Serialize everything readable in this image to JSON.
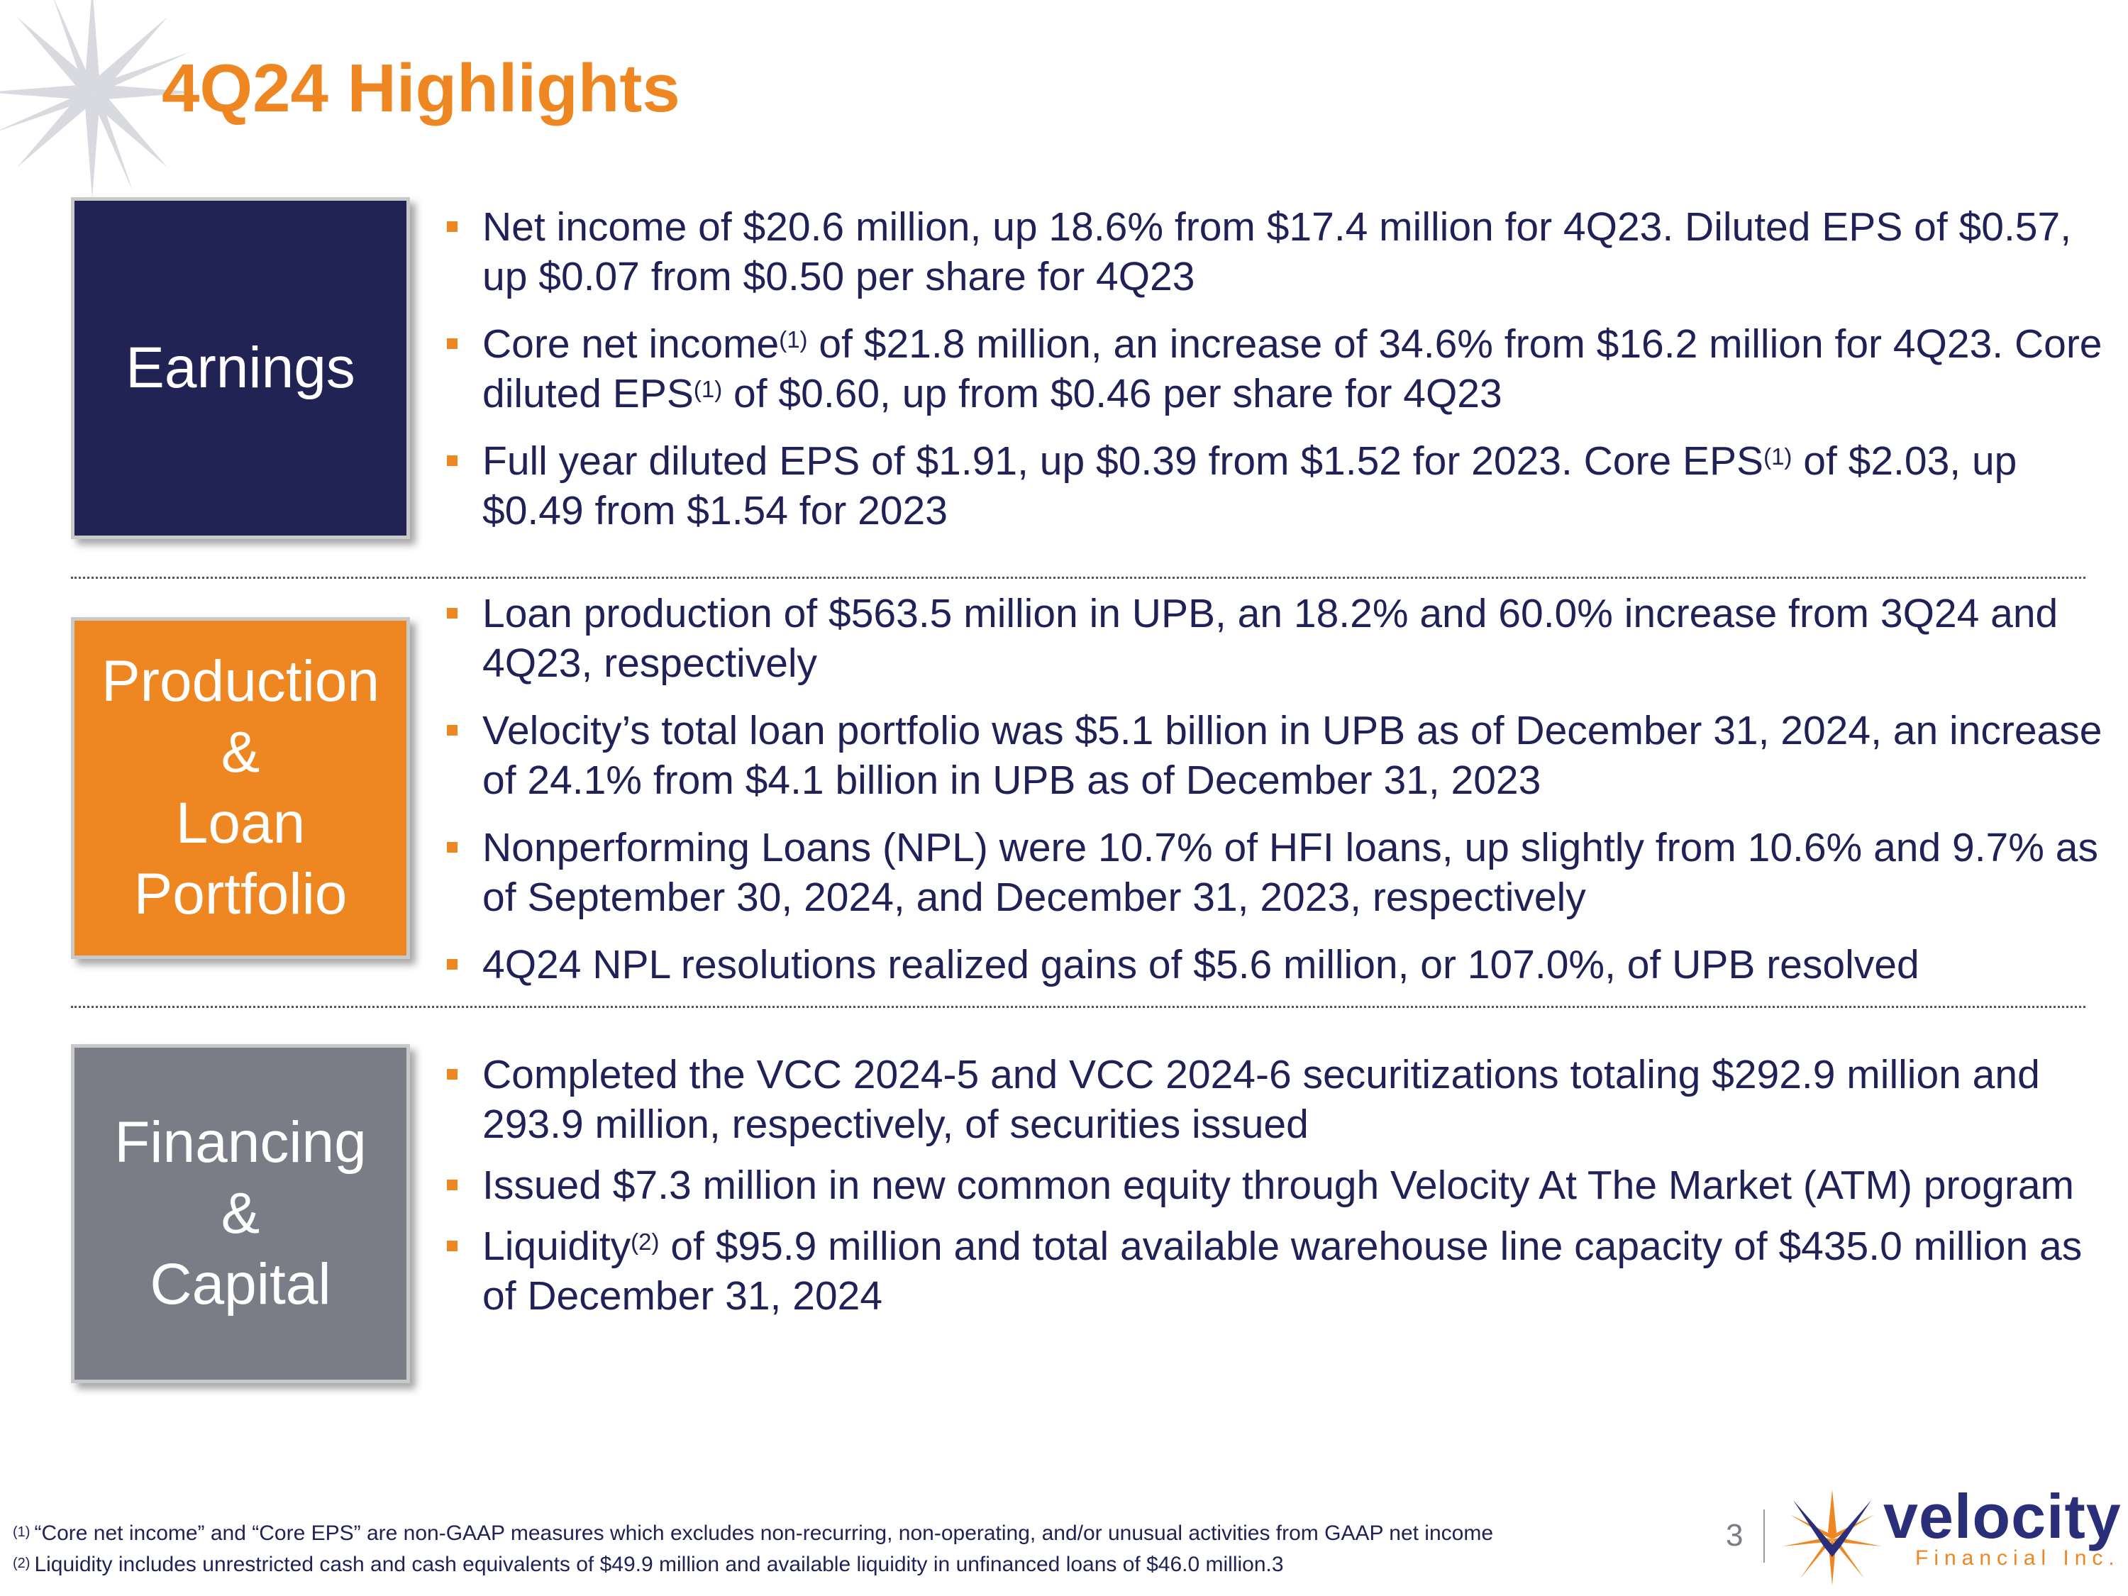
{
  "title": "4Q24 Highlights",
  "sections": [
    {
      "label": "Earnings",
      "bullets": [
        {
          "pre": "Net income of $20.6 million, up 18.6% from $17.4 million for 4Q23. Diluted EPS of $0.57, up $0.07 from $0.50 per share for 4Q23"
        },
        {
          "pre": "Core net income",
          "sup1": "(1)",
          "mid": " of $21.8 million, an increase of 34.6% from $16.2 million for 4Q23. Core diluted EPS",
          "sup2": "(1)",
          "post": " of $0.60, up from $0.46 per share for 4Q23"
        },
        {
          "pre": "Full year diluted EPS of $1.91, up $0.39 from $1.52 for 2023.  Core EPS",
          "sup1": "(1)",
          "mid": " of $2.03, up $0.49 from $1.54 for 2023"
        }
      ]
    },
    {
      "label": "Production\n&\nLoan\nPortfolio",
      "bullets": [
        {
          "pre": "Loan production of $563.5 million in UPB, an 18.2% and 60.0% increase from 3Q24 and 4Q23, respectively"
        },
        {
          "pre": "Velocity’s total loan portfolio was $5.1 billion in UPB as of December 31, 2024, an increase of 24.1% from $4.1 billion in UPB as of December 31, 2023"
        },
        {
          "pre": "Nonperforming Loans (NPL) were 10.7% of HFI loans, up slightly from 10.6% and 9.7% as of September 30, 2024, and December 31, 2023, respectively"
        },
        {
          "pre": "4Q24 NPL resolutions realized gains of $5.6 million, or 107.0%, of UPB resolved"
        }
      ]
    },
    {
      "label": "Financing\n&\nCapital",
      "bullets": [
        {
          "pre": "Completed the VCC 2024-5 and VCC 2024-6 securitizations totaling $292.9 million and 293.9 million, respectively, of securities issued"
        },
        {
          "pre": "Issued $7.3 million in new common equity through Velocity At The Market (ATM) program"
        },
        {
          "pre": "Liquidity",
          "sup1": "(2)",
          "mid": " of $95.9 million and total available warehouse line capacity of $435.0 million as of December 31, 2024"
        }
      ]
    }
  ],
  "footnotes": [
    {
      "mark": "(1)",
      "text": "“Core net income” and “Core EPS” are non-GAAP measures which excludes non-recurring, non-operating, and/or unusual activities from GAAP net income"
    },
    {
      "mark": "(2)",
      "text": "Liquidity includes unrestricted cash and cash equivalents of $49.9 million and available liquidity in unfinanced loans of $46.0 million.3"
    }
  ],
  "page_number": "3",
  "logo": {
    "name": "velocity",
    "subtitle": "Financial Inc."
  },
  "colors": {
    "navy": "#212354",
    "orange": "#ee8722",
    "gray": "#7a7c86",
    "text": "#1f2157"
  }
}
